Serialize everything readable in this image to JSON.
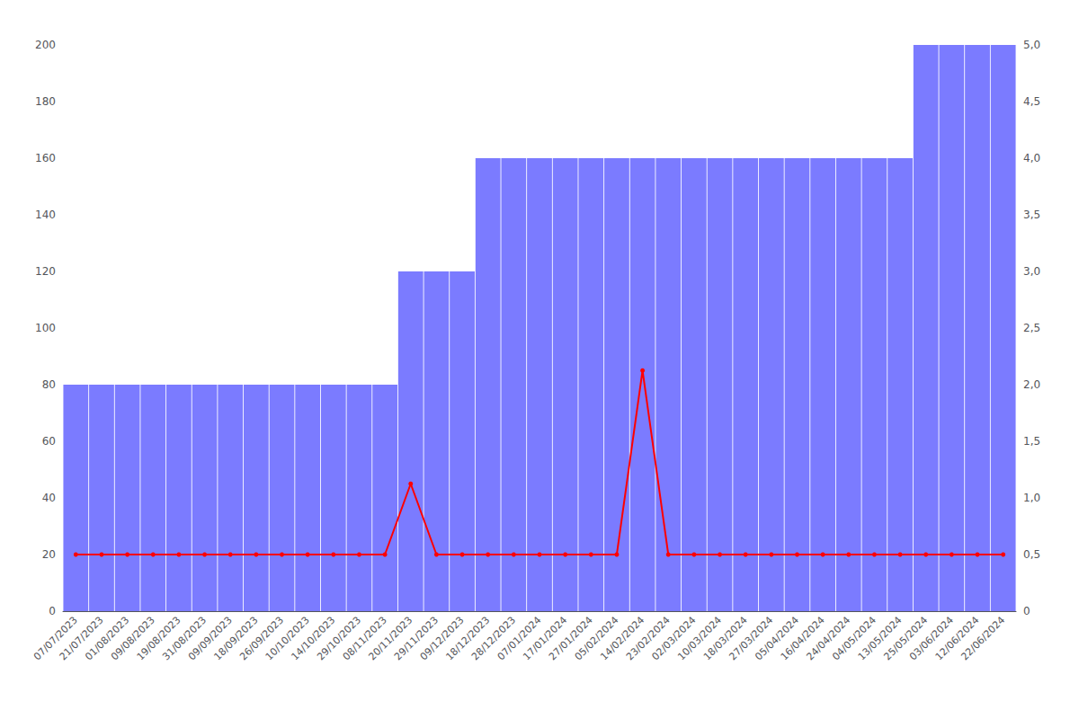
{
  "chart_data": {
    "type": "bar",
    "categories": [
      "07/07/2023",
      "21/07/2023",
      "01/08/2023",
      "09/08/2023",
      "19/08/2023",
      "31/08/2023",
      "09/09/2023",
      "18/09/2023",
      "26/09/2023",
      "10/10/2023",
      "14/10/2023",
      "29/10/2023",
      "08/11/2023",
      "20/11/2023",
      "29/11/2023",
      "09/12/2023",
      "18/12/2023",
      "28/12/2023",
      "07/01/2024",
      "17/01/2024",
      "27/01/2024",
      "05/02/2024",
      "14/02/2024",
      "23/02/2024",
      "02/03/2024",
      "10/03/2024",
      "18/03/2024",
      "27/03/2024",
      "05/04/2024",
      "16/04/2024",
      "24/04/2024",
      "04/05/2024",
      "13/05/2024",
      "25/05/2024",
      "03/06/2024",
      "12/06/2024",
      "22/06/2024"
    ],
    "series": [
      {
        "type": "bar",
        "color": "#7B7BFF",
        "values": [
          80,
          80,
          80,
          80,
          80,
          80,
          80,
          80,
          80,
          80,
          80,
          80,
          80,
          120,
          120,
          120,
          160,
          160,
          160,
          160,
          160,
          160,
          160,
          160,
          160,
          160,
          160,
          160,
          160,
          160,
          160,
          160,
          160,
          200,
          200,
          200,
          200
        ]
      },
      {
        "type": "line",
        "color": "#FF0000",
        "marker": "circle",
        "values": [
          20,
          20,
          20,
          20,
          20,
          20,
          20,
          20,
          20,
          20,
          20,
          20,
          20,
          45,
          20,
          20,
          20,
          20,
          20,
          20,
          20,
          20,
          85,
          20,
          20,
          20,
          20,
          20,
          20,
          20,
          20,
          20,
          20,
          20,
          20,
          20,
          20
        ]
      }
    ],
    "ylim": [
      0,
      200
    ],
    "yticks": [
      0,
      20,
      40,
      60,
      80,
      100,
      120,
      140,
      160,
      180,
      200
    ],
    "y2lim": [
      0,
      5.0
    ],
    "y2ticks": [
      0,
      {
        "value": 0.5,
        "label": "0,5"
      },
      {
        "value": 1.0,
        "label": "1,0"
      },
      {
        "value": 1.5,
        "label": "1,5"
      },
      {
        "value": 2.0,
        "label": "2,0"
      },
      {
        "value": 2.5,
        "label": "2,5"
      },
      {
        "value": 3.0,
        "label": "3,0"
      },
      {
        "value": 3.5,
        "label": "3,5"
      },
      {
        "value": 4.0,
        "label": "4,0"
      },
      {
        "value": 4.5,
        "label": "4,5"
      },
      {
        "value": 5.0,
        "label": "5,0"
      }
    ],
    "grid": false
  }
}
